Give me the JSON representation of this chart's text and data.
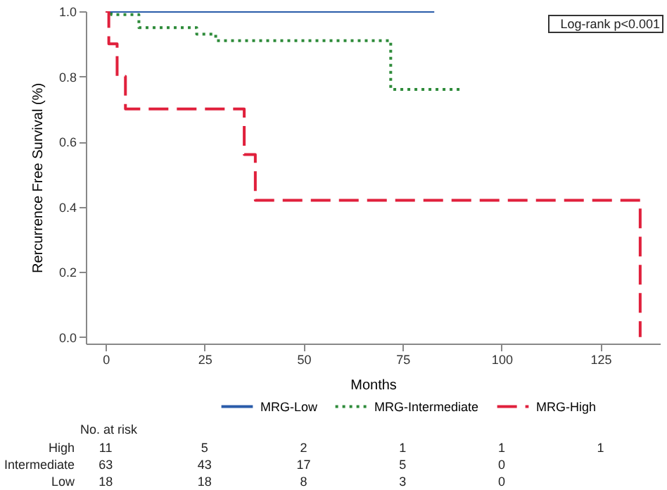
{
  "chart_data": {
    "type": "step",
    "xlabel": "Months",
    "ylabel": "Rercurrence Free Survival (%)",
    "xlim": [
      -5,
      140
    ],
    "ylim": [
      -0.02,
      1.0
    ],
    "xticks": [
      0,
      25,
      50,
      75,
      100,
      125
    ],
    "yticks": [
      {
        "value": 0,
        "label": "0.0"
      },
      0.2,
      0.4,
      0.6,
      0.8,
      {
        "value": 1,
        "label": "1.0"
      }
    ],
    "legend": "bottom",
    "grid": false,
    "series": [
      {
        "name": "MRG-Low",
        "color": "#2a5caa",
        "line_style": "solid",
        "x": [
          0,
          83
        ],
        "values": [
          1.0,
          1.0
        ]
      },
      {
        "name": "MRG-Intermediate",
        "color": "#2e8b3a",
        "line_style": "dotted",
        "x": [
          0,
          1.4,
          8.4,
          23,
          27.8,
          72,
          90
        ],
        "values": [
          1.0,
          0.99,
          0.95,
          0.93,
          0.91,
          0.76,
          0.76
        ]
      },
      {
        "name": "MRG-High",
        "color": "#e0203c",
        "line_style": "dashed",
        "x": [
          0,
          0.8,
          2.9,
          5,
          35,
          37.8,
          135
        ],
        "values": [
          1.0,
          0.9,
          0.8,
          0.7,
          0.56,
          0.42,
          0.0
        ]
      }
    ],
    "annotations": [
      "Log-rank p<0.001",
      "No. at risk",
      "High",
      "11",
      "5",
      "2",
      "1",
      "1",
      "1",
      "Intermediate",
      "63",
      "43",
      "17",
      "5",
      "0",
      "Low",
      "18",
      "18",
      "8",
      "3",
      "0"
    ]
  }
}
